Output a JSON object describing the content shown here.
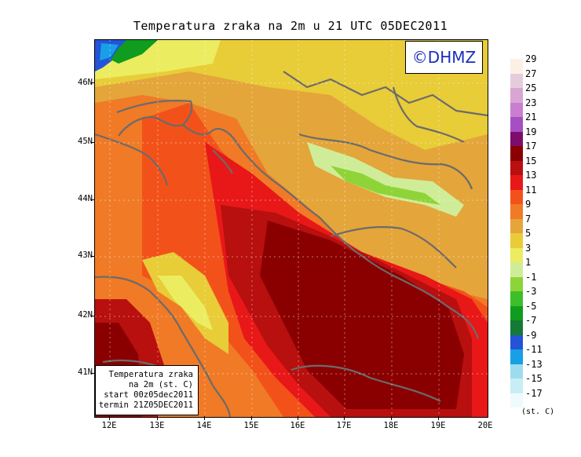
{
  "title": "Temperatura zraka na 2m u 21 UTC 05DEC2011",
  "logo": "©DHMZ",
  "info": {
    "line1": "Temperatura zraka",
    "line2": "na 2m (st. C)",
    "line3": "start 00z05dec2011",
    "line4": "termin 21Z05DEC2011"
  },
  "lat_labels": [
    "46N",
    "45N",
    "44N",
    "43N",
    "42N",
    "41N"
  ],
  "lon_labels": [
    "12E",
    "13E",
    "14E",
    "15E",
    "16E",
    "17E",
    "18E",
    "19E",
    "20E"
  ],
  "colorbar": {
    "labels": [
      "29",
      "27",
      "25",
      "23",
      "21",
      "19",
      "17",
      "15",
      "13",
      "11",
      "9",
      "7",
      "5",
      "3",
      "1",
      "-1",
      "-3",
      "-5",
      "-7",
      "-9",
      "-11",
      "-13",
      "-15",
      "-17"
    ],
    "colors": [
      "#fcefe4",
      "#e6cbdd",
      "#d9a6d3",
      "#c97ed1",
      "#a64fc2",
      "#7d0d6b",
      "#8a0000",
      "#b80f0f",
      "#e81818",
      "#f2521a",
      "#f07a26",
      "#e4a53a",
      "#e8cc38",
      "#ecec60",
      "#cfed98",
      "#8ed438",
      "#3cbf2a",
      "#0f9c1f",
      "#147a34",
      "#2354d8",
      "#17a0e6",
      "#9ddcee",
      "#c7eef4",
      "#eefbfd"
    ],
    "unit": "(st. C)"
  }
}
